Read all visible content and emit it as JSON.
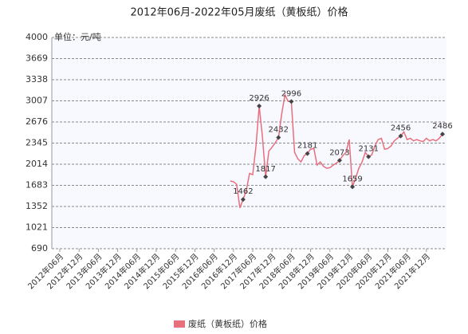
{
  "chart_data": {
    "type": "line",
    "title": "2012年06月-2022年05月废纸（黄板纸）价格",
    "y_label": "单位：元/吨",
    "categories": [
      "2012年06月",
      null,
      null,
      null,
      null,
      null,
      "2012年12月",
      null,
      null,
      null,
      null,
      null,
      "2013年06月",
      null,
      null,
      null,
      null,
      null,
      "2013年12月",
      null,
      null,
      null,
      null,
      null,
      "2014年06月",
      null,
      null,
      null,
      null,
      null,
      "2014年12月",
      null,
      null,
      null,
      null,
      null,
      "2015年06月",
      null,
      null,
      null,
      null,
      null,
      "2015年12月",
      null,
      null,
      null,
      null,
      null,
      "2016年06月",
      null,
      null,
      null,
      null,
      null,
      "2016年12月",
      null,
      null,
      null,
      null,
      null,
      "2017年06月",
      null,
      null,
      null,
      null,
      null,
      "2017年12月",
      null,
      null,
      null,
      null,
      null,
      "2018年06月",
      null,
      null,
      null,
      null,
      null,
      "2018年12月",
      null,
      null,
      null,
      null,
      null,
      "2019年06月",
      null,
      null,
      null,
      null,
      null,
      "2019年12月",
      null,
      null,
      null,
      null,
      null,
      "2020年06月",
      null,
      null,
      null,
      null,
      null,
      "2020年12月",
      null,
      null,
      null,
      null,
      null,
      "2021年06月",
      null,
      null,
      null,
      null,
      null,
      "2021年12月",
      null,
      null,
      null,
      null,
      null
    ],
    "series": [
      {
        "name": "废纸（黄板纸）价格",
        "color": "#e8707c",
        "values": [
          null,
          null,
          null,
          null,
          null,
          null,
          null,
          null,
          null,
          null,
          null,
          null,
          null,
          null,
          null,
          null,
          null,
          null,
          null,
          null,
          null,
          null,
          null,
          null,
          null,
          null,
          null,
          null,
          null,
          null,
          null,
          null,
          null,
          null,
          null,
          null,
          null,
          null,
          null,
          null,
          null,
          null,
          null,
          null,
          null,
          null,
          null,
          null,
          null,
          null,
          null,
          null,
          null,
          1750,
          1740,
          1700,
          1330,
          1462,
          1600,
          1870,
          1850,
          2300,
          2926,
          2450,
          1817,
          2220,
          2280,
          2350,
          2432,
          2800,
          3100,
          3000,
          2996,
          2200,
          2100,
          2050,
          2150,
          2181,
          2250,
          2260,
          2000,
          2050,
          1980,
          1950,
          1960,
          2000,
          2030,
          2073,
          2150,
          2200,
          2400,
          1659,
          1800,
          1950,
          2050,
          2200,
          2131,
          2160,
          2300,
          2400,
          2420,
          2250,
          2260,
          2300,
          2380,
          2420,
          2456,
          2520,
          2400,
          2420,
          2380,
          2400,
          2380,
          2370,
          2420,
          2380,
          2400,
          2380,
          2420,
          2486
        ],
        "value_labels": [
          null,
          null,
          null,
          null,
          null,
          null,
          null,
          null,
          null,
          null,
          null,
          null,
          null,
          null,
          null,
          null,
          null,
          null,
          null,
          null,
          null,
          null,
          null,
          null,
          null,
          null,
          null,
          null,
          null,
          null,
          null,
          null,
          null,
          null,
          null,
          null,
          null,
          null,
          null,
          null,
          null,
          null,
          null,
          null,
          null,
          null,
          null,
          null,
          null,
          null,
          null,
          null,
          null,
          null,
          null,
          null,
          null,
          "1462",
          null,
          null,
          null,
          null,
          "2926",
          null,
          "1817",
          null,
          null,
          null,
          "2432",
          null,
          null,
          null,
          "2996",
          null,
          null,
          null,
          null,
          "2181",
          null,
          null,
          null,
          null,
          null,
          null,
          null,
          null,
          null,
          "2073",
          null,
          null,
          null,
          "1659",
          null,
          null,
          null,
          null,
          "2131",
          null,
          null,
          null,
          null,
          null,
          null,
          null,
          null,
          null,
          "2456",
          null,
          null,
          null,
          null,
          null,
          null,
          null,
          null,
          null,
          null,
          null,
          null,
          "2486"
        ]
      }
    ],
    "ylim": [
      690,
      4000
    ],
    "yticks": [
      690,
      1021,
      1352,
      1683,
      2014,
      2345,
      2676,
      3007,
      3338,
      3669,
      4000
    ],
    "grid": true,
    "legend": "bottom"
  }
}
